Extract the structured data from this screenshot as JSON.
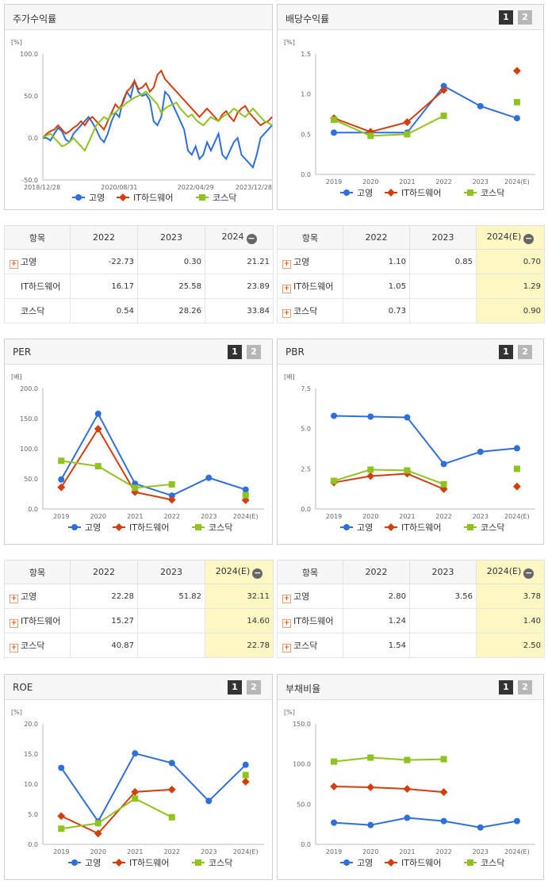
{
  "chart_data": [
    {
      "type": "line",
      "title": "주가수익률",
      "ylabel": "[%]",
      "ylim": [
        -50,
        100
      ],
      "yticks": [
        "100.0",
        "50.0",
        "0.0",
        "-50.0"
      ],
      "xticks": [
        "2018/12/28",
        "2020/08/31",
        "2022/04/29",
        "2023/12/28"
      ],
      "x": [
        0,
        1,
        2,
        3,
        4,
        5,
        6,
        7,
        8,
        9,
        10,
        11,
        12,
        13,
        14,
        15,
        16,
        17,
        18,
        19,
        20,
        21,
        22,
        23,
        24,
        25,
        26,
        27,
        28,
        29,
        30,
        31,
        32,
        33,
        34,
        35,
        36,
        37,
        38,
        39,
        40,
        41,
        42,
        43,
        44,
        45,
        46,
        47,
        48,
        49,
        50,
        51,
        52,
        53,
        54,
        55,
        56,
        57,
        58,
        59,
        60
      ],
      "series": [
        {
          "name": "고영",
          "color": "#2f6fd9",
          "values": [
            0,
            0,
            -3,
            5,
            12,
            8,
            -2,
            -5,
            5,
            10,
            15,
            20,
            25,
            18,
            10,
            0,
            -5,
            5,
            20,
            30,
            25,
            45,
            55,
            48,
            68,
            55,
            50,
            52,
            45,
            20,
            15,
            25,
            55,
            50,
            40,
            30,
            20,
            10,
            -15,
            -20,
            -10,
            -25,
            -20,
            -5,
            -15,
            -5,
            5,
            -20,
            -25,
            -15,
            -5,
            0,
            -20,
            -25,
            -30,
            -35,
            -20,
            0,
            5,
            10,
            15
          ]
        },
        {
          "name": "IT하드웨어",
          "color": "#d23f0f",
          "values": [
            0,
            5,
            8,
            10,
            15,
            10,
            5,
            8,
            12,
            15,
            20,
            15,
            22,
            25,
            20,
            15,
            10,
            20,
            30,
            40,
            35,
            42,
            55,
            60,
            68,
            58,
            60,
            65,
            55,
            60,
            75,
            80,
            70,
            65,
            60,
            55,
            50,
            45,
            40,
            35,
            30,
            25,
            30,
            35,
            30,
            25,
            20,
            28,
            32,
            25,
            20,
            30,
            35,
            38,
            30,
            25,
            20,
            15,
            18,
            20,
            25
          ]
        },
        {
          "name": "코스닥",
          "color": "#8fc31f",
          "values": [
            0,
            3,
            5,
            0,
            -5,
            -10,
            -8,
            -5,
            0,
            -5,
            -10,
            -15,
            -5,
            5,
            15,
            20,
            25,
            22,
            28,
            30,
            35,
            38,
            42,
            45,
            48,
            50,
            52,
            55,
            50,
            45,
            40,
            30,
            35,
            38,
            40,
            42,
            35,
            30,
            25,
            28,
            22,
            18,
            15,
            20,
            25,
            22,
            20,
            25,
            28,
            30,
            35,
            32,
            28,
            25,
            30,
            35,
            30,
            25,
            20,
            18,
            15
          ]
        }
      ],
      "legend": "bottom"
    },
    {
      "type": "line",
      "title": "배당수익률",
      "ylabel": "[%]",
      "ylim": [
        0,
        1.5
      ],
      "yticks": [
        "1.5",
        "1.0",
        "0.5",
        "0.0"
      ],
      "categories": [
        "2019",
        "2020",
        "2021",
        "2022",
        "2023",
        "2024(E)"
      ],
      "series": [
        {
          "name": "고영",
          "color": "#2f6fd9",
          "values": [
            0.52,
            0.52,
            0.52,
            1.1,
            0.85,
            0.7
          ]
        },
        {
          "name": "IT하드웨어",
          "color": "#d23f0f",
          "values": [
            0.7,
            0.53,
            0.65,
            1.05,
            null,
            1.29
          ]
        },
        {
          "name": "코스닥",
          "color": "#8fc31f",
          "values": [
            0.68,
            0.48,
            0.5,
            0.73,
            null,
            0.9
          ]
        }
      ],
      "legend": "bottom"
    },
    {
      "type": "line",
      "title": "PER",
      "ylabel": "[배]",
      "ylim": [
        0,
        200
      ],
      "yticks": [
        "200.0",
        "150.0",
        "100.0",
        "50.0",
        "0.0"
      ],
      "categories": [
        "2019",
        "2020",
        "2021",
        "2022",
        "2023",
        "2024(E)"
      ],
      "series": [
        {
          "name": "고영",
          "color": "#2f6fd9",
          "values": [
            49,
            158,
            42,
            22.28,
            51.82,
            32.11
          ]
        },
        {
          "name": "IT하드웨어",
          "color": "#d23f0f",
          "values": [
            36,
            133,
            28,
            15.27,
            null,
            14.6
          ]
        },
        {
          "name": "코스닥",
          "color": "#8fc31f",
          "values": [
            80,
            71,
            35,
            40.87,
            null,
            22.78
          ]
        }
      ],
      "legend": "bottom"
    },
    {
      "type": "line",
      "title": "PBR",
      "ylabel": "[배]",
      "ylim": [
        0,
        7.5
      ],
      "yticks": [
        "7.5",
        "5.0",
        "2.5",
        "0.0"
      ],
      "categories": [
        "2019",
        "2020",
        "2021",
        "2022",
        "2023",
        "2024(E)"
      ],
      "series": [
        {
          "name": "고영",
          "color": "#2f6fd9",
          "values": [
            5.8,
            5.75,
            5.7,
            2.8,
            3.56,
            3.78
          ]
        },
        {
          "name": "IT하드웨어",
          "color": "#d23f0f",
          "values": [
            1.65,
            2.05,
            2.2,
            1.24,
            null,
            1.4
          ]
        },
        {
          "name": "코스닥",
          "color": "#8fc31f",
          "values": [
            1.75,
            2.45,
            2.4,
            1.54,
            null,
            2.5
          ]
        }
      ],
      "legend": "bottom"
    },
    {
      "type": "line",
      "title": "ROE",
      "ylabel": "[%]",
      "ylim": [
        0,
        20
      ],
      "yticks": [
        "20.0",
        "15.0",
        "10.0",
        "5.0",
        "0.0"
      ],
      "categories": [
        "2019",
        "2020",
        "2021",
        "2022",
        "2023",
        "2024(E)"
      ],
      "series": [
        {
          "name": "고영",
          "color": "#2f6fd9",
          "values": [
            12.7,
            3.8,
            15.1,
            13.5,
            7.2,
            13.2
          ]
        },
        {
          "name": "IT하드웨어",
          "color": "#d23f0f",
          "values": [
            4.7,
            1.8,
            8.7,
            9.1,
            null,
            10.4
          ]
        },
        {
          "name": "코스닥",
          "color": "#8fc31f",
          "values": [
            2.6,
            3.5,
            7.6,
            4.5,
            null,
            11.5
          ]
        }
      ],
      "legend": "bottom"
    },
    {
      "type": "line",
      "title": "부채비율",
      "ylabel": "[%]",
      "ylim": [
        0,
        150
      ],
      "yticks": [
        "150.0",
        "100.0",
        "50.0",
        "0.0"
      ],
      "categories": [
        "2019",
        "2020",
        "2021",
        "2022",
        "2023",
        "2024(E)"
      ],
      "series": [
        {
          "name": "고영",
          "color": "#2f6fd9",
          "values": [
            27,
            24,
            33,
            29,
            21,
            29
          ]
        },
        {
          "name": "IT하드웨어",
          "color": "#d23f0f",
          "values": [
            72,
            71,
            69,
            65,
            null,
            null
          ]
        },
        {
          "name": "코스닥",
          "color": "#8fc31f",
          "values": [
            103,
            108,
            105,
            106,
            null,
            null
          ]
        }
      ],
      "legend": "bottom"
    }
  ],
  "tabs": [
    "1",
    "2"
  ],
  "tables": [
    {
      "header": [
        "항목",
        "2022",
        "2023",
        "2024"
      ],
      "rows": [
        {
          "label": "고영",
          "plus": true,
          "values": [
            "-22.73",
            "0.30",
            "21.21"
          ]
        },
        {
          "label": "IT하드웨어",
          "plus": false,
          "values": [
            "16.17",
            "25.58",
            "23.89"
          ]
        },
        {
          "label": "코스닥",
          "plus": false,
          "values": [
            "0.54",
            "28.26",
            "33.84"
          ]
        }
      ]
    },
    {
      "header": [
        "항목",
        "2022",
        "2023",
        "2024(E)"
      ],
      "rows": [
        {
          "label": "고영",
          "plus": true,
          "values": [
            "1.10",
            "0.85",
            "0.70"
          ]
        },
        {
          "label": "IT하드웨어",
          "plus": true,
          "values": [
            "1.05",
            "",
            "1.29"
          ]
        },
        {
          "label": "코스닥",
          "plus": true,
          "values": [
            "0.73",
            "",
            "0.90"
          ]
        }
      ]
    },
    {
      "header": [
        "항목",
        "2022",
        "2023",
        "2024(E)"
      ],
      "rows": [
        {
          "label": "고영",
          "plus": true,
          "values": [
            "22.28",
            "51.82",
            "32.11"
          ]
        },
        {
          "label": "IT하드웨어",
          "plus": true,
          "values": [
            "15.27",
            "",
            "14.60"
          ]
        },
        {
          "label": "코스닥",
          "plus": true,
          "values": [
            "40.87",
            "",
            "22.78"
          ]
        }
      ]
    },
    {
      "header": [
        "항목",
        "2022",
        "2023",
        "2024(E)"
      ],
      "rows": [
        {
          "label": "고영",
          "plus": true,
          "values": [
            "2.80",
            "3.56",
            "3.78"
          ]
        },
        {
          "label": "IT하드웨어",
          "plus": true,
          "values": [
            "1.24",
            "",
            "1.40"
          ]
        },
        {
          "label": "코스닥",
          "plus": true,
          "values": [
            "1.54",
            "",
            "2.50"
          ]
        }
      ]
    }
  ],
  "colors": {
    "blue": "#2f6fd9",
    "red": "#d23f0f",
    "green": "#8fc31f",
    "highlight": "#fdf7c3"
  }
}
